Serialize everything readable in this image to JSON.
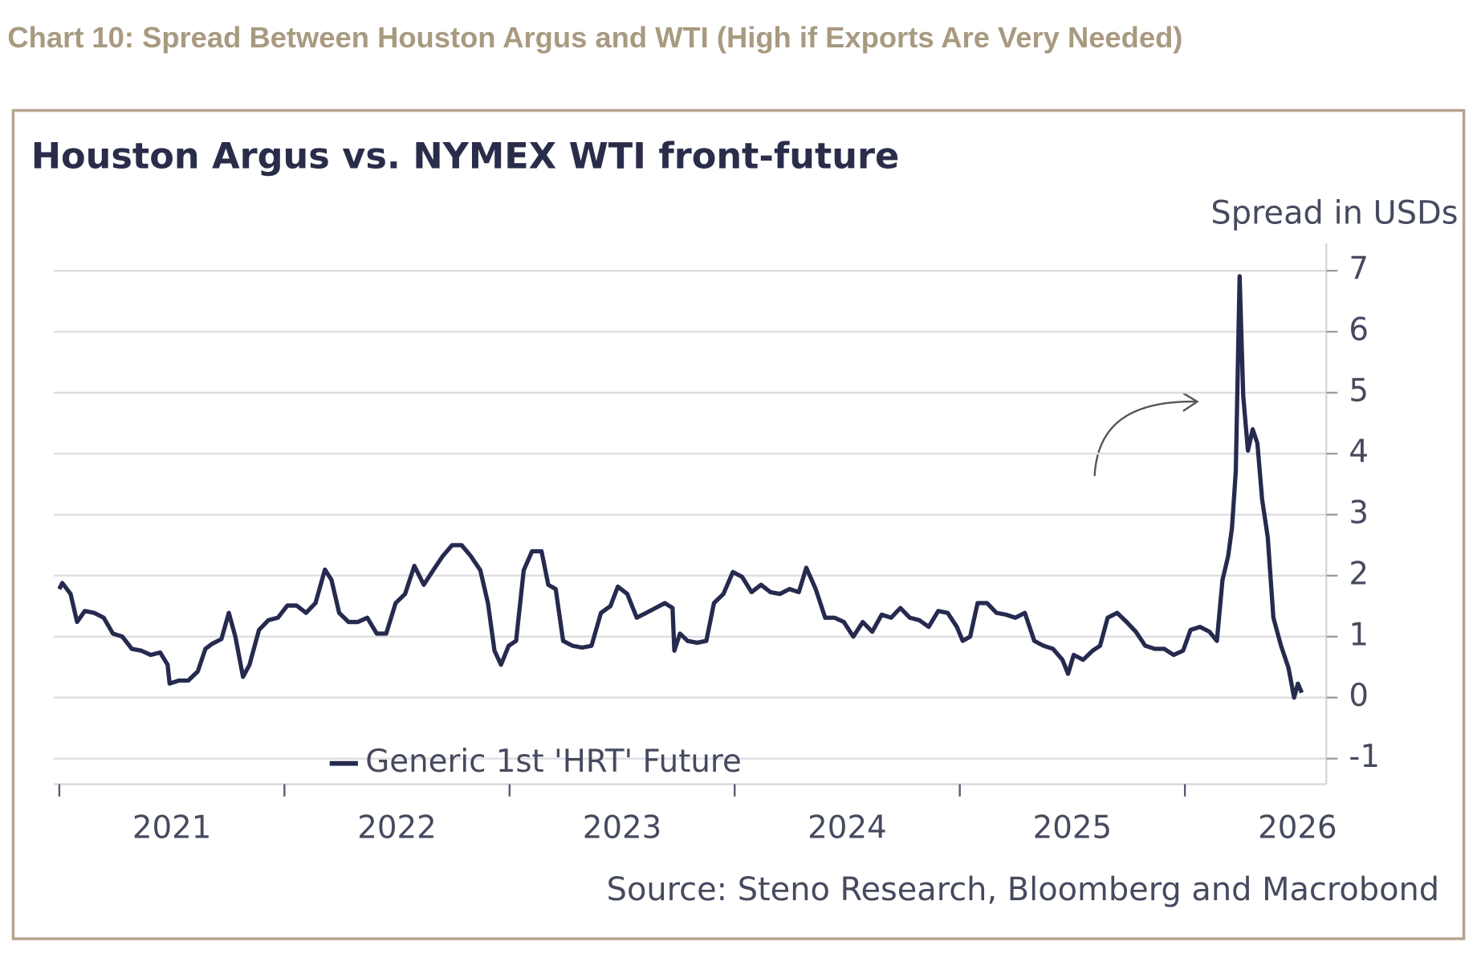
{
  "page_title": "Chart 10: Spread Between Houston Argus and WTI (High if Exports Are Very Needed)",
  "chart_data": {
    "type": "line",
    "title": "Houston Argus vs. NYMEX WTI front-future",
    "y_axis_label": "Spread in USDs",
    "source": "Source: Steno Research, Bloomberg and Macrobond",
    "legend_position": "bottom-left",
    "grid": true,
    "xlim": [
      2020.975,
      2026.628
    ],
    "xticks": [
      {
        "value": 2021,
        "label": "2021"
      },
      {
        "value": 2022,
        "label": "2022"
      },
      {
        "value": 2023,
        "label": "2023"
      },
      {
        "value": 2024,
        "label": "2024"
      },
      {
        "value": 2025,
        "label": "2025"
      },
      {
        "value": 2026,
        "label": "2026"
      }
    ],
    "ylim": [
      -1.42,
      7.45
    ],
    "yticks": [
      -1,
      0,
      1,
      2,
      3,
      4,
      5,
      6,
      7
    ],
    "x": [
      2021.0,
      2021.013,
      2021.05,
      2021.079,
      2021.113,
      2021.155,
      2021.197,
      2021.238,
      2021.28,
      2021.322,
      2021.364,
      2021.406,
      2021.448,
      2021.481,
      2021.49,
      2021.531,
      2021.573,
      2021.615,
      2021.649,
      2021.678,
      2021.72,
      2021.753,
      2021.782,
      2021.816,
      2021.845,
      2021.887,
      2021.929,
      2021.971,
      2022.013,
      2022.054,
      2022.096,
      2022.138,
      2022.18,
      2022.209,
      2022.243,
      2022.285,
      2022.326,
      2022.368,
      2022.41,
      2022.452,
      2022.494,
      2022.536,
      2022.577,
      2022.619,
      2022.661,
      2022.703,
      2022.745,
      2022.787,
      2022.828,
      2022.87,
      2022.904,
      2022.933,
      2022.962,
      2022.996,
      2023.029,
      2023.063,
      2023.1,
      2023.142,
      2023.172,
      2023.205,
      2023.238,
      2023.28,
      2023.322,
      2023.364,
      2023.406,
      2023.448,
      2023.481,
      2023.523,
      2023.565,
      2023.607,
      2023.649,
      2023.69,
      2023.724,
      2023.732,
      2023.757,
      2023.791,
      2023.833,
      2023.874,
      2023.908,
      2023.95,
      2023.992,
      2024.033,
      2024.075,
      2024.117,
      2024.159,
      2024.201,
      2024.243,
      2024.285,
      2024.318,
      2024.36,
      2024.402,
      2024.444,
      2024.485,
      2024.527,
      2024.569,
      2024.611,
      2024.653,
      2024.695,
      2024.736,
      2024.778,
      2024.82,
      2024.862,
      2024.904,
      2024.946,
      2024.987,
      2025.013,
      2025.046,
      2025.079,
      2025.121,
      2025.163,
      2025.205,
      2025.247,
      2025.289,
      2025.331,
      2025.372,
      2025.414,
      2025.456,
      2025.481,
      2025.506,
      2025.548,
      2025.59,
      2025.623,
      2025.657,
      2025.699,
      2025.741,
      2025.782,
      2025.824,
      2025.866,
      2025.908,
      2025.95,
      2025.992,
      2026.025,
      2026.067,
      2026.109,
      2026.142,
      2026.167,
      2026.192,
      2026.209,
      2026.226,
      2026.243,
      2026.259,
      2026.28,
      2026.301,
      2026.322,
      2026.343,
      2026.368,
      2026.393,
      2026.427,
      2026.46,
      2026.485,
      2026.502,
      2026.519
    ],
    "series": [
      {
        "name": "Generic 1st 'HRT' Future",
        "color": "#262a4f",
        "values": [
          1.78,
          1.88,
          1.7,
          1.24,
          1.42,
          1.39,
          1.31,
          1.05,
          1.0,
          0.8,
          0.77,
          0.7,
          0.74,
          0.54,
          0.23,
          0.28,
          0.28,
          0.43,
          0.8,
          0.88,
          0.96,
          1.39,
          1.0,
          0.34,
          0.54,
          1.11,
          1.27,
          1.31,
          1.51,
          1.51,
          1.39,
          1.55,
          2.1,
          1.93,
          1.39,
          1.24,
          1.24,
          1.31,
          1.05,
          1.05,
          1.55,
          1.7,
          2.16,
          1.85,
          2.09,
          2.32,
          2.5,
          2.5,
          2.32,
          2.09,
          1.55,
          0.77,
          0.54,
          0.85,
          0.93,
          2.09,
          2.4,
          2.4,
          1.85,
          1.78,
          0.93,
          0.85,
          0.82,
          0.85,
          1.39,
          1.5,
          1.82,
          1.7,
          1.31,
          1.39,
          1.47,
          1.55,
          1.47,
          0.77,
          1.05,
          0.93,
          0.9,
          0.93,
          1.55,
          1.7,
          2.06,
          1.98,
          1.73,
          1.85,
          1.73,
          1.7,
          1.78,
          1.73,
          2.13,
          1.78,
          1.31,
          1.31,
          1.24,
          1.0,
          1.24,
          1.08,
          1.36,
          1.31,
          1.47,
          1.31,
          1.27,
          1.16,
          1.42,
          1.39,
          1.16,
          0.93,
          1.0,
          1.55,
          1.55,
          1.39,
          1.36,
          1.31,
          1.39,
          0.93,
          0.85,
          0.8,
          0.62,
          0.39,
          0.7,
          0.62,
          0.77,
          0.85,
          1.31,
          1.39,
          1.24,
          1.08,
          0.85,
          0.8,
          0.8,
          0.7,
          0.77,
          1.11,
          1.16,
          1.08,
          0.93,
          1.93,
          2.32,
          2.78,
          3.71,
          6.91,
          4.95,
          4.05,
          4.4,
          4.17,
          3.25,
          2.63,
          1.31,
          0.85,
          0.49,
          0.0,
          0.23,
          0.08
        ]
      }
    ]
  }
}
